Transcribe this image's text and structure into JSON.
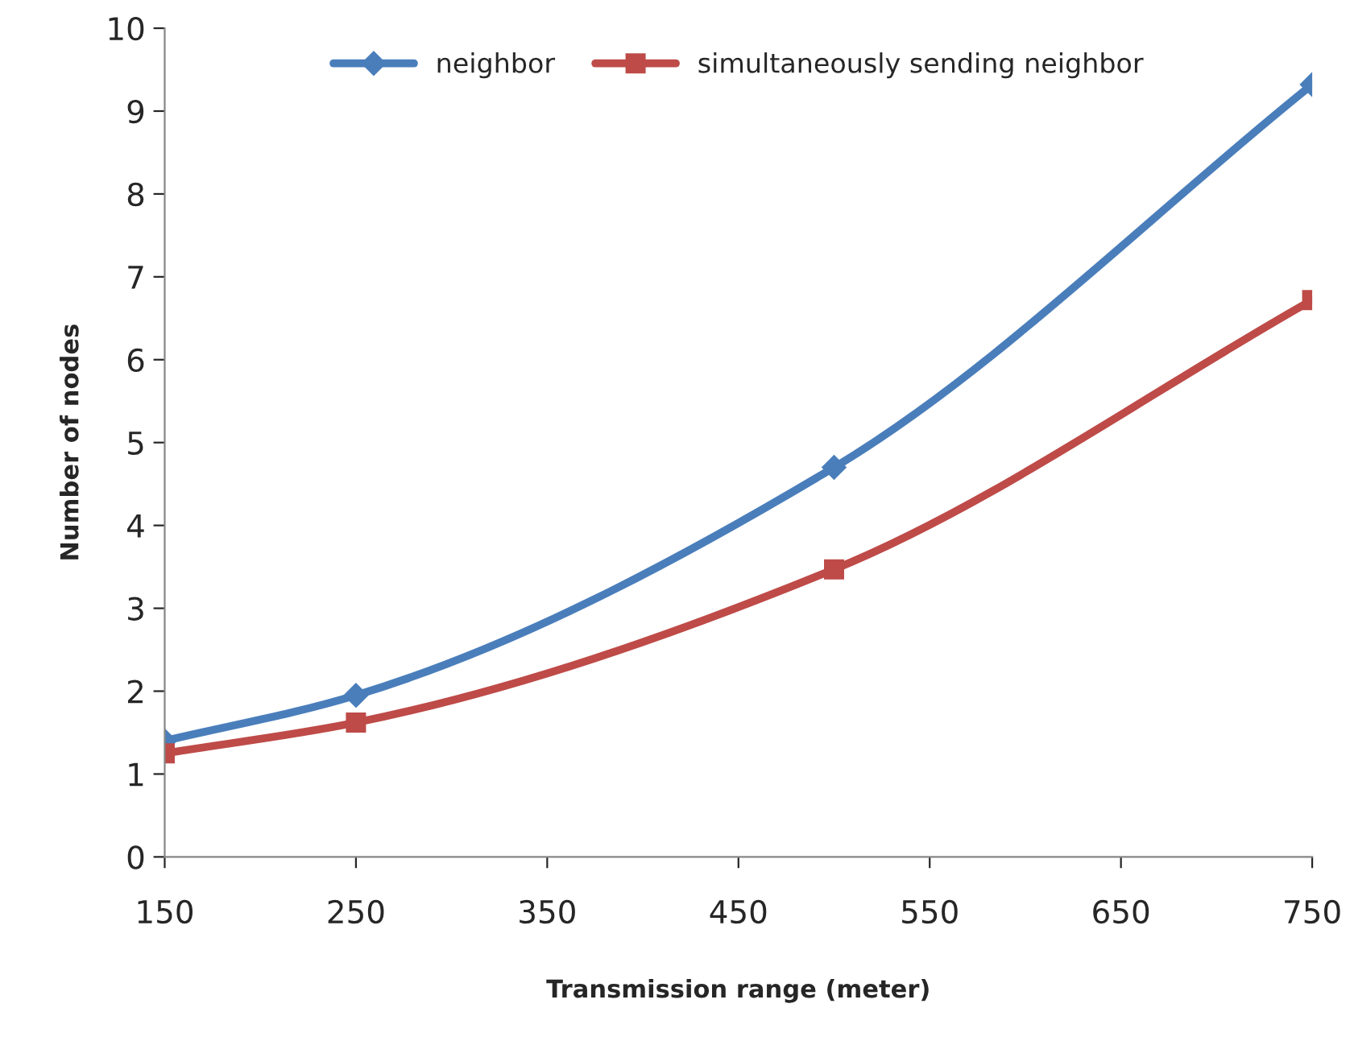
{
  "chart_data": {
    "type": "line",
    "xlabel": "Transmission range (meter)",
    "ylabel": "Number of nodes",
    "x": [
      150,
      250,
      500,
      750
    ],
    "series": [
      {
        "name": "neighbor",
        "color": "#4a7ebb",
        "values": [
          1.4,
          1.95,
          4.7,
          9.32
        ],
        "marker": "diamond"
      },
      {
        "name": "simultaneously sending neighbor",
        "color": "#be4b48",
        "values": [
          1.25,
          1.62,
          3.47,
          6.72
        ],
        "marker": "square"
      }
    ],
    "xlim": [
      150,
      750
    ],
    "xticks": [
      150,
      250,
      350,
      450,
      550,
      650,
      750
    ],
    "ylim": [
      0,
      10
    ],
    "yticks": [
      0,
      1,
      2,
      3,
      4,
      5,
      6,
      7,
      8,
      9,
      10
    ],
    "grid": false,
    "legend": "top",
    "line_style": "solid"
  }
}
